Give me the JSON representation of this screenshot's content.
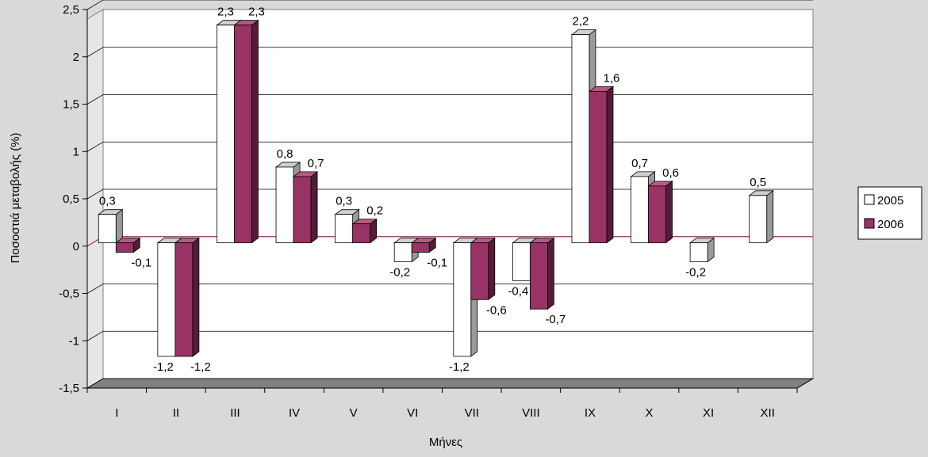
{
  "chart_data": {
    "type": "bar",
    "xlabel": "Μήνες",
    "ylabel": "Ποσοστιά μεταβολής (%)",
    "categories": [
      "I",
      "II",
      "III",
      "IV",
      "V",
      "VI",
      "VII",
      "VIII",
      "IX",
      "X",
      "XI",
      "XII"
    ],
    "series": [
      {
        "name": "2005",
        "values": [
          0.3,
          -1.2,
          2.3,
          0.8,
          0.3,
          -0.2,
          -1.2,
          -0.4,
          2.2,
          0.7,
          -0.2,
          0.5
        ],
        "labels": [
          "0,3",
          "-1,2",
          "2,3",
          "0,8",
          "0,3",
          "-0,2",
          "-1,2",
          "-0,4",
          "2,2",
          "0,7",
          "-0,2",
          "0,5"
        ]
      },
      {
        "name": "2006",
        "values": [
          -0.1,
          -1.2,
          2.3,
          0.7,
          0.2,
          -0.1,
          -0.6,
          -0.7,
          1.6,
          0.6,
          null,
          null
        ],
        "labels": [
          "-0,1",
          "-1,2",
          "2,3",
          "0,7",
          "0,2",
          "-0,1",
          "-0,6",
          "-0,7",
          "1,6",
          "0,6",
          "",
          ""
        ]
      }
    ],
    "ylim": [
      -1.5,
      2.5
    ],
    "yticks": [
      -1.5,
      -1,
      -0.5,
      0,
      0.5,
      1,
      1.5,
      2,
      2.5
    ],
    "ytick_labels": [
      "-1,5",
      "-1",
      "-0,5",
      "0",
      "0,5",
      "1",
      "1,5",
      "2",
      "2,5"
    ],
    "grid": true,
    "legend_position": "right",
    "colors": {
      "series_2005": "#ffffff",
      "series_2006": "#993366",
      "wall": "#ffffff",
      "floor": "#808080",
      "background": "#d9d9d9",
      "zero_line": "#993366"
    }
  }
}
